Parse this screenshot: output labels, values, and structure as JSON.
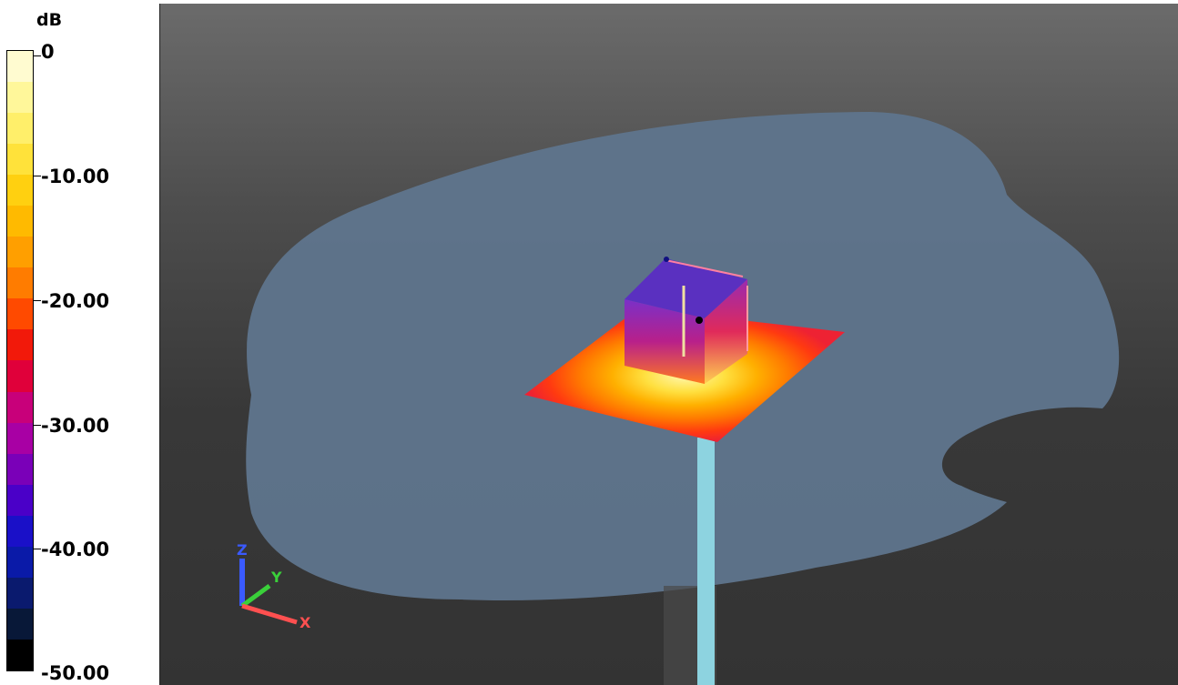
{
  "colorbar": {
    "unit": "dB",
    "labels": [
      "0",
      "-10.00",
      "-20.00",
      "-30.00",
      "-40.00",
      "-50.00"
    ],
    "colors": [
      "#fffbd0",
      "#fff79a",
      "#ffef6a",
      "#ffe23a",
      "#ffd010",
      "#ffba00",
      "#ff9f00",
      "#ff7c00",
      "#ff4a00",
      "#f2190a",
      "#e0003a",
      "#c8007a",
      "#a800a4",
      "#7a00b8",
      "#4a00c8",
      "#1a10c8",
      "#0a1aa8",
      "#0a1a6e",
      "#081838",
      "#000000"
    ]
  },
  "viewport": {
    "axes": {
      "x": "X",
      "y": "Y",
      "z": "Z"
    }
  }
}
